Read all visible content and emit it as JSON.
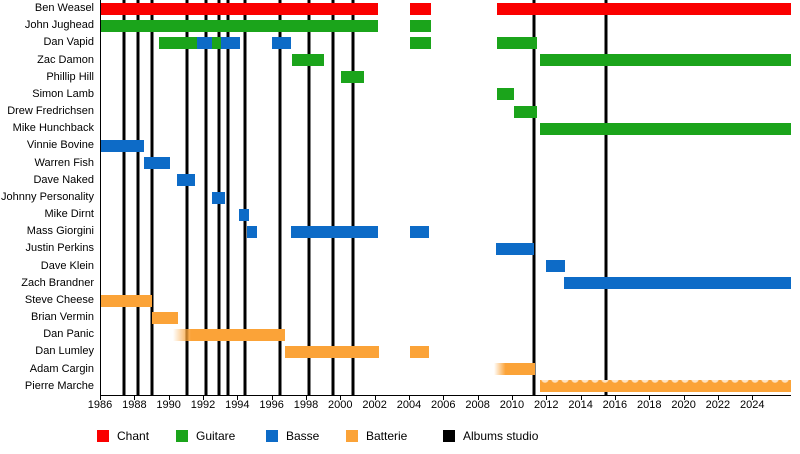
{
  "chart_data": {
    "type": "timeline",
    "x_axis": {
      "start": 1986,
      "end": 2026.2,
      "tick_years": [
        1986,
        1988,
        1990,
        1992,
        1994,
        1996,
        1998,
        2000,
        2002,
        2004,
        2006,
        2008,
        2010,
        2012,
        2014,
        2016,
        2018,
        2020,
        2022,
        2024
      ]
    },
    "roles": {
      "chant": "#FA0000",
      "guitare": "#1BA41B",
      "basse": "#0D6BC7",
      "batterie": "#FBA338",
      "album": "#000000"
    },
    "legend": [
      {
        "label": "Chant",
        "role": "chant"
      },
      {
        "label": "Guitare",
        "role": "guitare"
      },
      {
        "label": "Basse",
        "role": "basse"
      },
      {
        "label": "Batterie",
        "role": "batterie"
      },
      {
        "label": "Albums studio",
        "role": "album"
      }
    ],
    "album_years": [
      1987.35,
      1988.15,
      1989.0,
      1991.0,
      1992.1,
      1992.9,
      1993.4,
      1994.4,
      1996.45,
      1998.1,
      1999.5,
      2000.7,
      2011.2,
      2015.4
    ],
    "members": [
      {
        "name": "Ben Weasel",
        "segments": [
          {
            "role": "chant",
            "start": 1986.0,
            "end": 2002.15
          },
          {
            "role": "chant",
            "start": 2004.0,
            "end": 2005.2
          },
          {
            "role": "chant",
            "start": 2009.05,
            "end": 2026.2
          }
        ]
      },
      {
        "name": "John Jughead",
        "segments": [
          {
            "role": "guitare",
            "start": 1986.0,
            "end": 2002.15
          },
          {
            "role": "guitare",
            "start": 2004.0,
            "end": 2005.2
          }
        ]
      },
      {
        "name": "Dan Vapid",
        "segments": [
          {
            "role": "guitare",
            "start": 1989.4,
            "end": 1991.6
          },
          {
            "role": "basse",
            "start": 1991.6,
            "end": 1992.45
          },
          {
            "role": "guitare",
            "start": 1992.45,
            "end": 1993.0
          },
          {
            "role": "basse",
            "start": 1993.0,
            "end": 1994.1
          },
          {
            "role": "basse",
            "start": 1995.95,
            "end": 1997.05
          },
          {
            "role": "guitare",
            "start": 2004.0,
            "end": 2005.2
          },
          {
            "role": "guitare",
            "start": 2009.05,
            "end": 2011.4
          }
        ]
      },
      {
        "name": "Zac Damon",
        "segments": [
          {
            "role": "guitare",
            "start": 1997.1,
            "end": 1999.0
          },
          {
            "role": "guitare",
            "start": 2011.6,
            "end": 2026.2
          }
        ]
      },
      {
        "name": "Phillip Hill",
        "segments": [
          {
            "role": "guitare",
            "start": 2000.0,
            "end": 2001.3
          }
        ]
      },
      {
        "name": "Simon Lamb",
        "segments": [
          {
            "role": "guitare",
            "start": 2009.05,
            "end": 2010.05
          }
        ]
      },
      {
        "name": "Drew Fredrichsen",
        "segments": [
          {
            "role": "guitare",
            "start": 2010.05,
            "end": 2011.4
          }
        ]
      },
      {
        "name": "Mike Hunchback",
        "segments": [
          {
            "role": "guitare",
            "start": 2011.6,
            "end": 2026.2
          }
        ]
      },
      {
        "name": "Vinnie Bovine",
        "segments": [
          {
            "role": "basse",
            "start": 1986.0,
            "end": 1988.5
          }
        ]
      },
      {
        "name": "Warren Fish",
        "segments": [
          {
            "role": "basse",
            "start": 1988.5,
            "end": 1990.0
          }
        ]
      },
      {
        "name": "Dave Naked",
        "segments": [
          {
            "role": "basse",
            "start": 1990.4,
            "end": 1991.5
          }
        ]
      },
      {
        "name": "Johnny Personality",
        "segments": [
          {
            "role": "basse",
            "start": 1992.45,
            "end": 1993.2
          }
        ]
      },
      {
        "name": "Mike Dirnt",
        "segments": [
          {
            "role": "basse",
            "start": 1994.05,
            "end": 1994.6
          }
        ]
      },
      {
        "name": "Mass Giorgini",
        "segments": [
          {
            "role": "basse",
            "start": 1994.5,
            "end": 1995.1
          },
          {
            "role": "basse",
            "start": 1997.05,
            "end": 2002.15
          },
          {
            "role": "basse",
            "start": 2004.0,
            "end": 2005.1
          }
        ]
      },
      {
        "name": "Justin Perkins",
        "segments": [
          {
            "role": "basse",
            "start": 2009.0,
            "end": 2011.2
          }
        ]
      },
      {
        "name": "Dave Klein",
        "segments": [
          {
            "role": "basse",
            "start": 2011.9,
            "end": 2013.05
          }
        ]
      },
      {
        "name": "Zach Brandner",
        "segments": [
          {
            "role": "basse",
            "start": 2013.0,
            "end": 2026.2
          }
        ]
      },
      {
        "name": "Steve Cheese",
        "segments": [
          {
            "role": "batterie",
            "start": 1986.0,
            "end": 1989.0
          }
        ]
      },
      {
        "name": "Brian Vermin",
        "segments": [
          {
            "role": "batterie",
            "start": 1989.0,
            "end": 1990.5
          }
        ]
      },
      {
        "name": "Dan Panic",
        "segments": [
          {
            "role": "batterie",
            "start": 1990.2,
            "end": 1996.7,
            "fade_left": 0.16
          }
        ]
      },
      {
        "name": "Dan Lumley",
        "segments": [
          {
            "role": "batterie",
            "start": 1996.7,
            "end": 2002.2
          },
          {
            "role": "batterie",
            "start": 2004.0,
            "end": 2005.1
          }
        ]
      },
      {
        "name": "Adam Cargin",
        "segments": [
          {
            "role": "batterie",
            "start": 2008.9,
            "end": 2011.3,
            "fade_left": 0.28
          }
        ]
      },
      {
        "name": "Pierre Marche",
        "segments": [
          {
            "role": "batterie",
            "start": 2011.6,
            "end": 2026.2,
            "pattern": "wavy"
          }
        ]
      }
    ]
  }
}
